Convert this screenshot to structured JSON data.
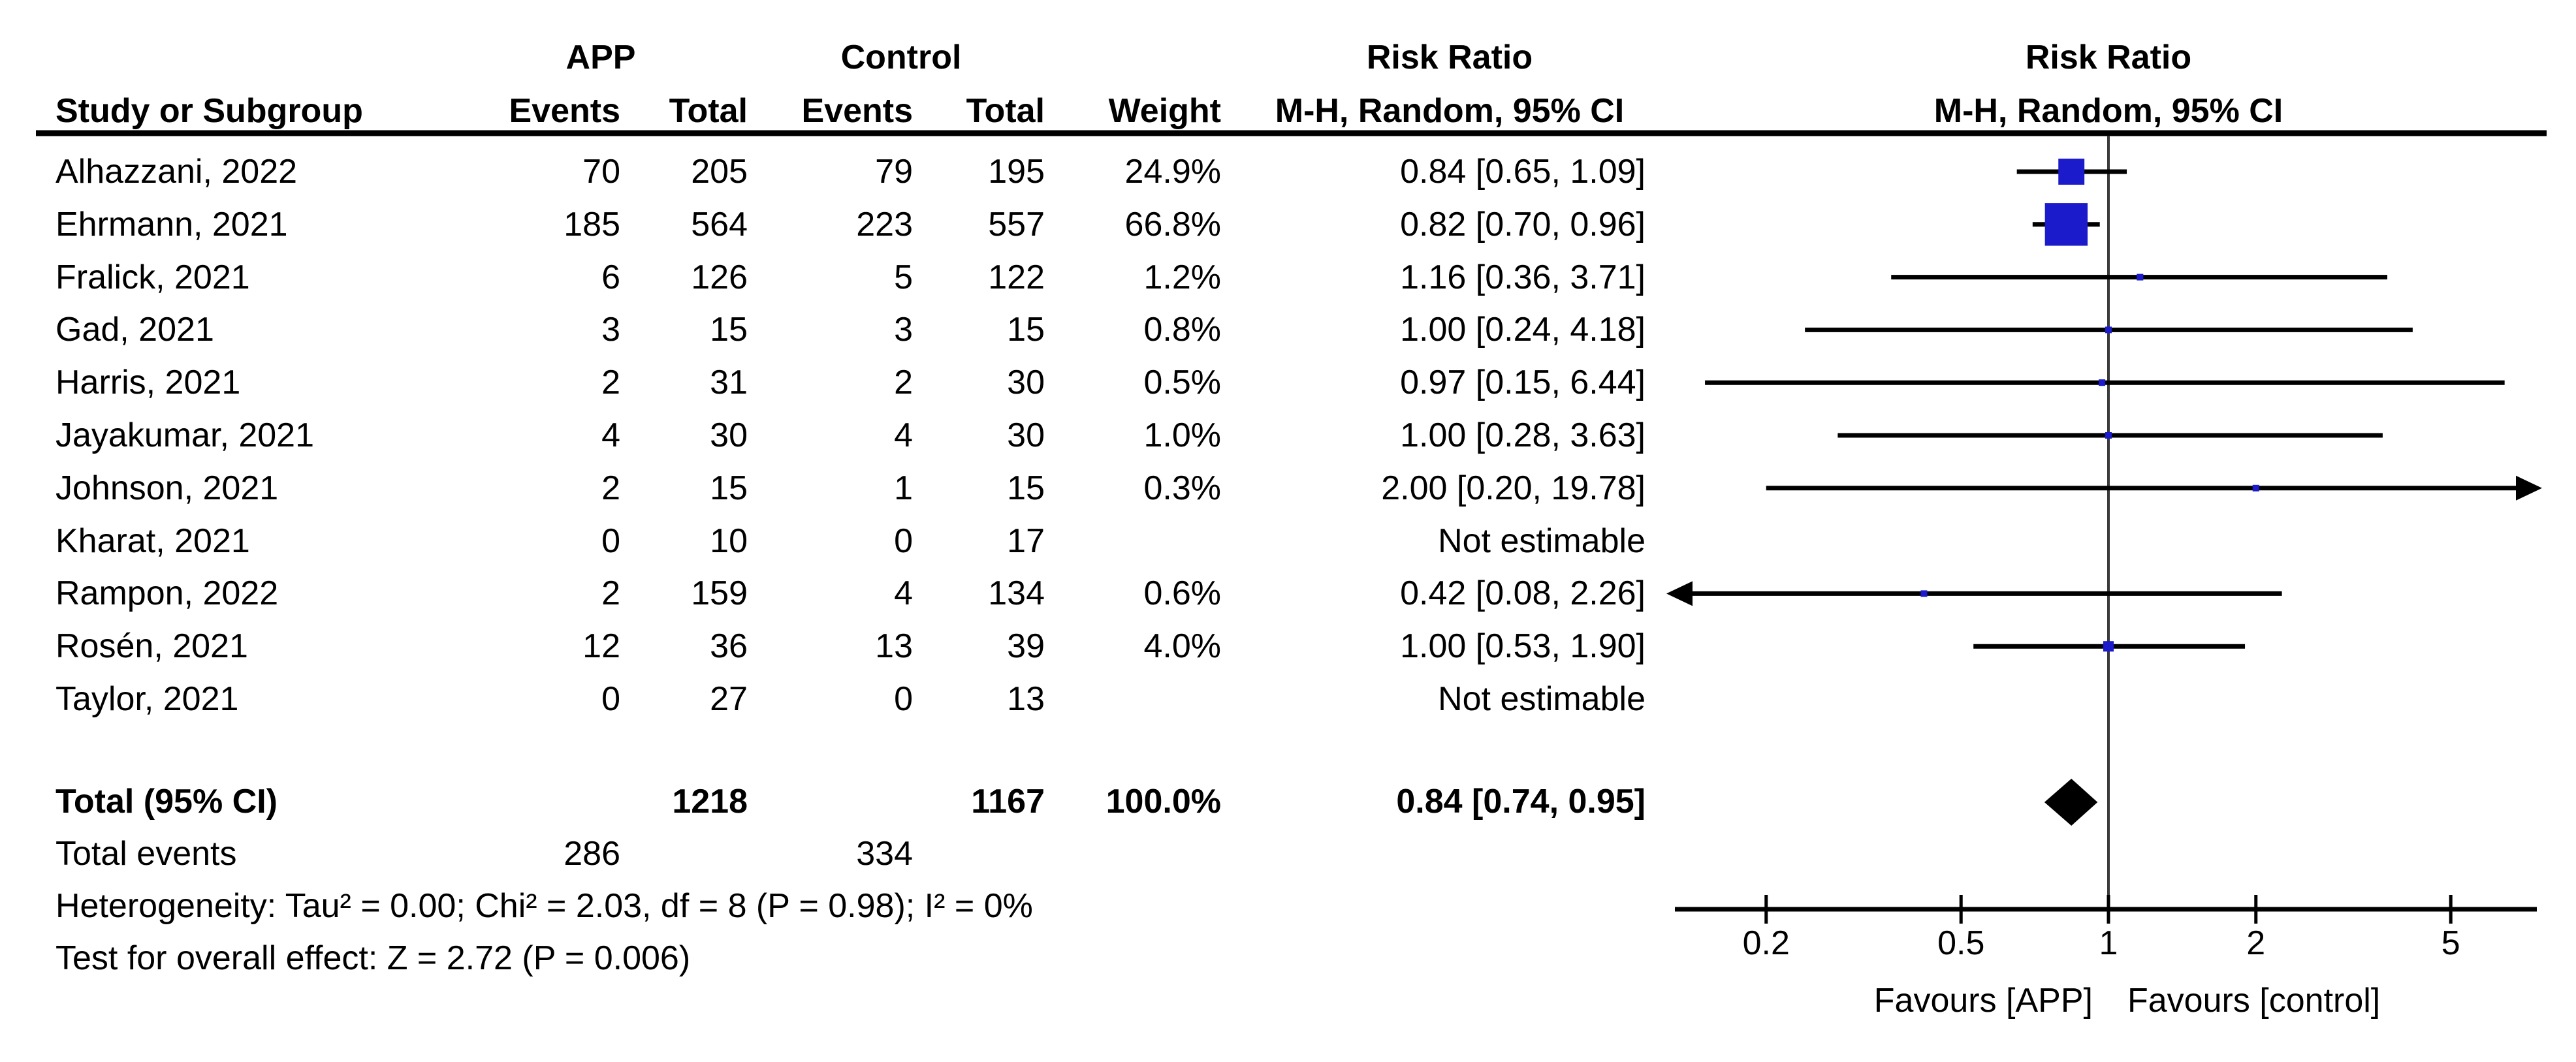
{
  "header": {
    "group_app": "APP",
    "group_control": "Control",
    "col_study": "Study or Subgroup",
    "col_events_app": "Events",
    "col_total_app": "Total",
    "col_events_ctrl": "Events",
    "col_total_ctrl": "Total",
    "col_weight": "Weight",
    "rr_title_text_col": "Risk Ratio",
    "rr_subtitle_text_col": "M-H, Random, 95% CI",
    "rr_title_plot_col": "Risk Ratio",
    "rr_subtitle_plot_col": "M-H, Random, 95% CI"
  },
  "colors": {
    "square_blue": "#1b1bcb",
    "diamond_black": "#000000",
    "line_black": "#000000",
    "vline_gray": "#3a3a3a",
    "text_black": "#000000"
  },
  "chart_data": {
    "type": "scatter",
    "subtype": "forest-plot",
    "effect_measure": "Risk Ratio, M-H, Random, 95% CI",
    "x_scale": "log",
    "x_ticks": [
      "0.2",
      "0.5",
      "1",
      "2",
      "5"
    ],
    "x_tick_values": [
      0.2,
      0.5,
      1,
      2,
      5
    ],
    "x_plot_min": 0.13,
    "x_plot_max": 7.5,
    "favours_left": "Favours [APP]",
    "favours_right": "Favours [control]",
    "studies": [
      {
        "study": "Alhazzani, 2022",
        "app_events": "70",
        "app_total": "205",
        "ctrl_events": "79",
        "ctrl_total": "195",
        "weight": "24.9%",
        "weight_pct": 24.9,
        "rr": 0.84,
        "ci_low": 0.65,
        "ci_high": 1.09,
        "rr_text": "0.84 [0.65, 1.09]",
        "estimable": true
      },
      {
        "study": "Ehrmann, 2021",
        "app_events": "185",
        "app_total": "564",
        "ctrl_events": "223",
        "ctrl_total": "557",
        "weight": "66.8%",
        "weight_pct": 66.8,
        "rr": 0.82,
        "ci_low": 0.7,
        "ci_high": 0.96,
        "rr_text": "0.82 [0.70, 0.96]",
        "estimable": true
      },
      {
        "study": "Fralick, 2021",
        "app_events": "6",
        "app_total": "126",
        "ctrl_events": "5",
        "ctrl_total": "122",
        "weight": "1.2%",
        "weight_pct": 1.2,
        "rr": 1.16,
        "ci_low": 0.36,
        "ci_high": 3.71,
        "rr_text": "1.16 [0.36, 3.71]",
        "estimable": true
      },
      {
        "study": "Gad, 2021",
        "app_events": "3",
        "app_total": "15",
        "ctrl_events": "3",
        "ctrl_total": "15",
        "weight": "0.8%",
        "weight_pct": 0.8,
        "rr": 1.0,
        "ci_low": 0.24,
        "ci_high": 4.18,
        "rr_text": "1.00 [0.24, 4.18]",
        "estimable": true
      },
      {
        "study": "Harris, 2021",
        "app_events": "2",
        "app_total": "31",
        "ctrl_events": "2",
        "ctrl_total": "30",
        "weight": "0.5%",
        "weight_pct": 0.5,
        "rr": 0.97,
        "ci_low": 0.15,
        "ci_high": 6.44,
        "rr_text": "0.97 [0.15, 6.44]",
        "estimable": true
      },
      {
        "study": "Jayakumar, 2021",
        "app_events": "4",
        "app_total": "30",
        "ctrl_events": "4",
        "ctrl_total": "30",
        "weight": "1.0%",
        "weight_pct": 1.0,
        "rr": 1.0,
        "ci_low": 0.28,
        "ci_high": 3.63,
        "rr_text": "1.00 [0.28, 3.63]",
        "estimable": true
      },
      {
        "study": "Johnson, 2021",
        "app_events": "2",
        "app_total": "15",
        "ctrl_events": "1",
        "ctrl_total": "15",
        "weight": "0.3%",
        "weight_pct": 0.3,
        "rr": 2.0,
        "ci_low": 0.2,
        "ci_high": 19.78,
        "rr_text": "2.00 [0.20, 19.78]",
        "estimable": true
      },
      {
        "study": "Kharat, 2021",
        "app_events": "0",
        "app_total": "10",
        "ctrl_events": "0",
        "ctrl_total": "17",
        "weight": "",
        "weight_pct": null,
        "rr": null,
        "ci_low": null,
        "ci_high": null,
        "rr_text": "Not estimable",
        "estimable": false
      },
      {
        "study": "Rampon, 2022",
        "app_events": "2",
        "app_total": "159",
        "ctrl_events": "4",
        "ctrl_total": "134",
        "weight": "0.6%",
        "weight_pct": 0.6,
        "rr": 0.42,
        "ci_low": 0.08,
        "ci_high": 2.26,
        "rr_text": "0.42 [0.08, 2.26]",
        "estimable": true
      },
      {
        "study": "Rosén, 2021",
        "app_events": "12",
        "app_total": "36",
        "ctrl_events": "13",
        "ctrl_total": "39",
        "weight": "4.0%",
        "weight_pct": 4.0,
        "rr": 1.0,
        "ci_low": 0.53,
        "ci_high": 1.9,
        "rr_text": "1.00 [0.53, 1.90]",
        "estimable": true
      },
      {
        "study": "Taylor, 2021",
        "app_events": "0",
        "app_total": "27",
        "ctrl_events": "0",
        "ctrl_total": "13",
        "weight": "",
        "weight_pct": null,
        "rr": null,
        "ci_low": null,
        "ci_high": null,
        "rr_text": "Not estimable",
        "estimable": false
      }
    ],
    "overall": {
      "label": "Total (95% CI)",
      "app_total": "1218",
      "ctrl_total": "1167",
      "weight": "100.0%",
      "rr": 0.84,
      "ci_low": 0.74,
      "ci_high": 0.95,
      "rr_text": "0.84 [0.74, 0.95]"
    },
    "total_events": {
      "label": "Total events",
      "app": "286",
      "ctrl": "334"
    },
    "heterogeneity": "Heterogeneity: Tau² = 0.00; Chi² = 2.03, df = 8 (P = 0.98); I² = 0%",
    "overall_effect_test": "Test for overall effect: Z = 2.72 (P = 0.006)"
  }
}
